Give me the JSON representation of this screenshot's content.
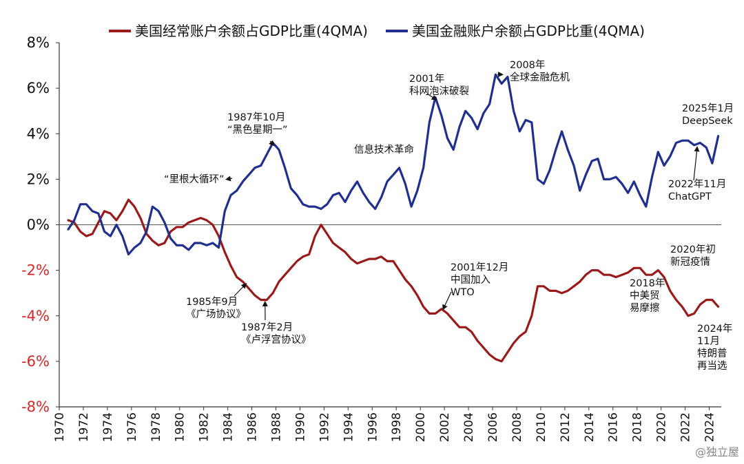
{
  "colors": {
    "current_account": "#9a1a1a",
    "financial_account": "#1f2f8f",
    "negative_tick": "#d62828",
    "positive_tick": "#111111"
  },
  "watermark": "@独立屋",
  "chart_data": {
    "type": "line",
    "xlim": [
      1970,
      2025
    ],
    "ylim": [
      -8,
      8
    ],
    "xlabel": "",
    "ylabel": "",
    "y_ticks": [
      {
        "value": 8,
        "label": "8%"
      },
      {
        "value": 6,
        "label": "6%"
      },
      {
        "value": 4,
        "label": "4%"
      },
      {
        "value": 2,
        "label": "2%"
      },
      {
        "value": 0,
        "label": "0%"
      },
      {
        "value": -2,
        "label": "-2%"
      },
      {
        "value": -4,
        "label": "-4%"
      },
      {
        "value": -6,
        "label": "-6%"
      },
      {
        "value": -8,
        "label": "-8%"
      }
    ],
    "x_ticks": [
      "1970",
      "1972",
      "1974",
      "1976",
      "1978",
      "1980",
      "1982",
      "1984",
      "1986",
      "1988",
      "1990",
      "1992",
      "1994",
      "1996",
      "1998",
      "2000",
      "2002",
      "2004",
      "2006",
      "2008",
      "2010",
      "2012",
      "2014",
      "2016",
      "2018",
      "2020",
      "2022",
      "2024"
    ],
    "series": [
      {
        "name": "美国经常账户余额占GDP比重(4QMA)",
        "color_key": "current_account",
        "points": [
          [
            1970.75,
            0.2
          ],
          [
            1971.25,
            0.1
          ],
          [
            1971.75,
            -0.3
          ],
          [
            1972.25,
            -0.5
          ],
          [
            1972.75,
            -0.4
          ],
          [
            1973.25,
            0.1
          ],
          [
            1973.75,
            0.6
          ],
          [
            1974.25,
            0.5
          ],
          [
            1974.75,
            0.2
          ],
          [
            1975.25,
            0.6
          ],
          [
            1975.75,
            1.1
          ],
          [
            1976.25,
            0.8
          ],
          [
            1976.75,
            0.3
          ],
          [
            1977.25,
            -0.4
          ],
          [
            1977.75,
            -0.7
          ],
          [
            1978.25,
            -0.9
          ],
          [
            1978.75,
            -0.8
          ],
          [
            1979.25,
            -0.3
          ],
          [
            1979.75,
            -0.1
          ],
          [
            1980.25,
            -0.1
          ],
          [
            1980.75,
            0.1
          ],
          [
            1981.25,
            0.2
          ],
          [
            1981.75,
            0.3
          ],
          [
            1982.25,
            0.2
          ],
          [
            1982.75,
            0.0
          ],
          [
            1983.25,
            -0.5
          ],
          [
            1983.75,
            -1.2
          ],
          [
            1984.25,
            -1.8
          ],
          [
            1984.75,
            -2.3
          ],
          [
            1985.25,
            -2.5
          ],
          [
            1985.75,
            -2.8
          ],
          [
            1986.25,
            -3.1
          ],
          [
            1986.75,
            -3.3
          ],
          [
            1987.25,
            -3.3
          ],
          [
            1987.75,
            -3.0
          ],
          [
            1988.25,
            -2.5
          ],
          [
            1988.75,
            -2.2
          ],
          [
            1989.25,
            -1.9
          ],
          [
            1989.75,
            -1.6
          ],
          [
            1990.25,
            -1.4
          ],
          [
            1990.75,
            -1.3
          ],
          [
            1991.25,
            -0.5
          ],
          [
            1991.75,
            0.0
          ],
          [
            1992.25,
            -0.4
          ],
          [
            1992.75,
            -0.8
          ],
          [
            1993.25,
            -1.0
          ],
          [
            1993.75,
            -1.2
          ],
          [
            1994.25,
            -1.5
          ],
          [
            1994.75,
            -1.7
          ],
          [
            1995.25,
            -1.6
          ],
          [
            1995.75,
            -1.5
          ],
          [
            1996.25,
            -1.5
          ],
          [
            1996.75,
            -1.4
          ],
          [
            1997.25,
            -1.6
          ],
          [
            1997.75,
            -1.6
          ],
          [
            1998.25,
            -2.0
          ],
          [
            1998.75,
            -2.4
          ],
          [
            1999.25,
            -2.7
          ],
          [
            1999.75,
            -3.1
          ],
          [
            2000.25,
            -3.6
          ],
          [
            2000.75,
            -3.9
          ],
          [
            2001.25,
            -3.9
          ],
          [
            2001.75,
            -3.7
          ],
          [
            2002.25,
            -3.9
          ],
          [
            2002.75,
            -4.2
          ],
          [
            2003.25,
            -4.5
          ],
          [
            2003.75,
            -4.5
          ],
          [
            2004.25,
            -4.7
          ],
          [
            2004.75,
            -5.1
          ],
          [
            2005.25,
            -5.4
          ],
          [
            2005.75,
            -5.7
          ],
          [
            2006.25,
            -5.9
          ],
          [
            2006.75,
            -6.0
          ],
          [
            2007.25,
            -5.6
          ],
          [
            2007.75,
            -5.2
          ],
          [
            2008.25,
            -4.9
          ],
          [
            2008.75,
            -4.7
          ],
          [
            2009.25,
            -4.0
          ],
          [
            2009.75,
            -2.7
          ],
          [
            2010.25,
            -2.7
          ],
          [
            2010.75,
            -2.9
          ],
          [
            2011.25,
            -2.9
          ],
          [
            2011.75,
            -3.0
          ],
          [
            2012.25,
            -2.9
          ],
          [
            2012.75,
            -2.7
          ],
          [
            2013.25,
            -2.5
          ],
          [
            2013.75,
            -2.2
          ],
          [
            2014.25,
            -2.0
          ],
          [
            2014.75,
            -2.0
          ],
          [
            2015.25,
            -2.2
          ],
          [
            2015.75,
            -2.2
          ],
          [
            2016.25,
            -2.3
          ],
          [
            2016.75,
            -2.2
          ],
          [
            2017.25,
            -2.1
          ],
          [
            2017.75,
            -1.9
          ],
          [
            2018.25,
            -1.9
          ],
          [
            2018.75,
            -2.2
          ],
          [
            2019.25,
            -2.2
          ],
          [
            2019.75,
            -2.0
          ],
          [
            2020.25,
            -2.3
          ],
          [
            2020.75,
            -2.9
          ],
          [
            2021.25,
            -3.3
          ],
          [
            2021.75,
            -3.6
          ],
          [
            2022.25,
            -4.0
          ],
          [
            2022.75,
            -3.9
          ],
          [
            2023.25,
            -3.5
          ],
          [
            2023.75,
            -3.3
          ],
          [
            2024.25,
            -3.3
          ],
          [
            2024.75,
            -3.6
          ]
        ]
      },
      {
        "name": "美国金融账户余额占GDP比重(4QMA)",
        "color_key": "financial_account",
        "points": [
          [
            1970.75,
            -0.2
          ],
          [
            1971.25,
            0.2
          ],
          [
            1971.75,
            0.9
          ],
          [
            1972.25,
            0.9
          ],
          [
            1972.75,
            0.6
          ],
          [
            1973.25,
            0.5
          ],
          [
            1973.75,
            -0.3
          ],
          [
            1974.25,
            -0.5
          ],
          [
            1974.75,
            0.0
          ],
          [
            1975.25,
            -0.5
          ],
          [
            1975.75,
            -1.3
          ],
          [
            1976.25,
            -1.0
          ],
          [
            1976.75,
            -0.8
          ],
          [
            1977.25,
            -0.3
          ],
          [
            1977.75,
            0.8
          ],
          [
            1978.25,
            0.6
          ],
          [
            1978.75,
            0.1
          ],
          [
            1979.25,
            -0.6
          ],
          [
            1979.75,
            -0.9
          ],
          [
            1980.25,
            -0.9
          ],
          [
            1980.75,
            -1.1
          ],
          [
            1981.25,
            -0.8
          ],
          [
            1981.75,
            -0.8
          ],
          [
            1982.25,
            -0.9
          ],
          [
            1982.75,
            -0.8
          ],
          [
            1983.25,
            -1.0
          ],
          [
            1983.75,
            0.6
          ],
          [
            1984.25,
            1.3
          ],
          [
            1984.75,
            1.5
          ],
          [
            1985.25,
            1.9
          ],
          [
            1985.75,
            2.2
          ],
          [
            1986.25,
            2.5
          ],
          [
            1986.75,
            2.6
          ],
          [
            1987.25,
            3.1
          ],
          [
            1987.75,
            3.6
          ],
          [
            1988.25,
            3.3
          ],
          [
            1988.75,
            2.5
          ],
          [
            1989.25,
            1.6
          ],
          [
            1989.75,
            1.3
          ],
          [
            1990.25,
            0.9
          ],
          [
            1990.75,
            0.8
          ],
          [
            1991.25,
            0.8
          ],
          [
            1991.75,
            0.7
          ],
          [
            1992.25,
            0.9
          ],
          [
            1992.75,
            1.3
          ],
          [
            1993.25,
            1.4
          ],
          [
            1993.75,
            1.0
          ],
          [
            1994.25,
            1.5
          ],
          [
            1994.75,
            1.9
          ],
          [
            1995.25,
            1.4
          ],
          [
            1995.75,
            1.0
          ],
          [
            1996.25,
            0.7
          ],
          [
            1996.75,
            1.2
          ],
          [
            1997.25,
            1.9
          ],
          [
            1997.75,
            2.2
          ],
          [
            1998.25,
            2.5
          ],
          [
            1998.75,
            1.8
          ],
          [
            1999.25,
            0.8
          ],
          [
            1999.75,
            1.5
          ],
          [
            2000.25,
            2.5
          ],
          [
            2000.75,
            4.5
          ],
          [
            2001.25,
            5.6
          ],
          [
            2001.75,
            4.8
          ],
          [
            2002.25,
            3.8
          ],
          [
            2002.75,
            3.3
          ],
          [
            2003.25,
            4.3
          ],
          [
            2003.75,
            5.0
          ],
          [
            2004.25,
            4.7
          ],
          [
            2004.75,
            4.2
          ],
          [
            2005.25,
            4.9
          ],
          [
            2005.75,
            5.3
          ],
          [
            2006.25,
            6.6
          ],
          [
            2006.75,
            6.2
          ],
          [
            2007.25,
            6.5
          ],
          [
            2007.75,
            5.0
          ],
          [
            2008.25,
            4.1
          ],
          [
            2008.75,
            4.6
          ],
          [
            2009.25,
            4.5
          ],
          [
            2009.75,
            2.0
          ],
          [
            2010.25,
            1.8
          ],
          [
            2010.75,
            2.4
          ],
          [
            2011.25,
            3.3
          ],
          [
            2011.75,
            4.1
          ],
          [
            2012.25,
            3.3
          ],
          [
            2012.75,
            2.6
          ],
          [
            2013.25,
            1.5
          ],
          [
            2013.75,
            2.2
          ],
          [
            2014.25,
            2.8
          ],
          [
            2014.75,
            2.9
          ],
          [
            2015.25,
            2.0
          ],
          [
            2015.75,
            2.0
          ],
          [
            2016.25,
            2.1
          ],
          [
            2016.75,
            1.8
          ],
          [
            2017.25,
            1.4
          ],
          [
            2017.75,
            1.9
          ],
          [
            2018.25,
            1.3
          ],
          [
            2018.75,
            0.8
          ],
          [
            2019.25,
            2.1
          ],
          [
            2019.75,
            3.2
          ],
          [
            2020.25,
            2.6
          ],
          [
            2020.75,
            3.0
          ],
          [
            2021.25,
            3.6
          ],
          [
            2021.75,
            3.7
          ],
          [
            2022.25,
            3.7
          ],
          [
            2022.75,
            3.5
          ],
          [
            2023.25,
            3.6
          ],
          [
            2023.75,
            3.4
          ],
          [
            2024.25,
            2.7
          ],
          [
            2024.75,
            3.9
          ]
        ]
      }
    ],
    "annotations": [
      {
        "lines": [
          "1985年9月",
          "《广场协议》"
        ],
        "point": [
          1985.5,
          -2.6
        ]
      },
      {
        "lines": [
          "1987年2月",
          "《卢浮宫协议》"
        ],
        "point": [
          1987.1,
          -3.4
        ]
      },
      {
        "lines": [
          "1987年10月",
          "“黑色星期一”"
        ],
        "point": [
          1987.8,
          3.5
        ]
      },
      {
        "lines": [
          "“里根大循环”"
        ],
        "point": [
          1983.9,
          2.0
        ]
      },
      {
        "lines": [
          "信息技术革命"
        ],
        "point": null
      },
      {
        "lines": [
          "2001年",
          "科网泡沫破裂"
        ],
        "point": [
          2001.3,
          5.5
        ]
      },
      {
        "lines": [
          "2008年",
          "全球金融危机"
        ],
        "point": [
          2006.8,
          6.6
        ]
      },
      {
        "lines": [
          "2001年12月",
          "中国加入",
          "WTO"
        ],
        "point": [
          2001.9,
          -3.7
        ]
      },
      {
        "lines": [
          "2018年",
          "中美贸",
          "易摩擦"
        ],
        "point": null
      },
      {
        "lines": [
          "2020年初",
          "新冠疫情"
        ],
        "point": null
      },
      {
        "lines": [
          "2024年",
          "11月",
          "特朗普",
          "再当选"
        ],
        "point": null
      },
      {
        "lines": [
          "2025年1月",
          "DeepSeek"
        ],
        "point": null
      },
      {
        "lines": [
          "2022年11月",
          "ChatGPT"
        ],
        "point": [
          2023.0,
          3.4
        ]
      }
    ]
  }
}
